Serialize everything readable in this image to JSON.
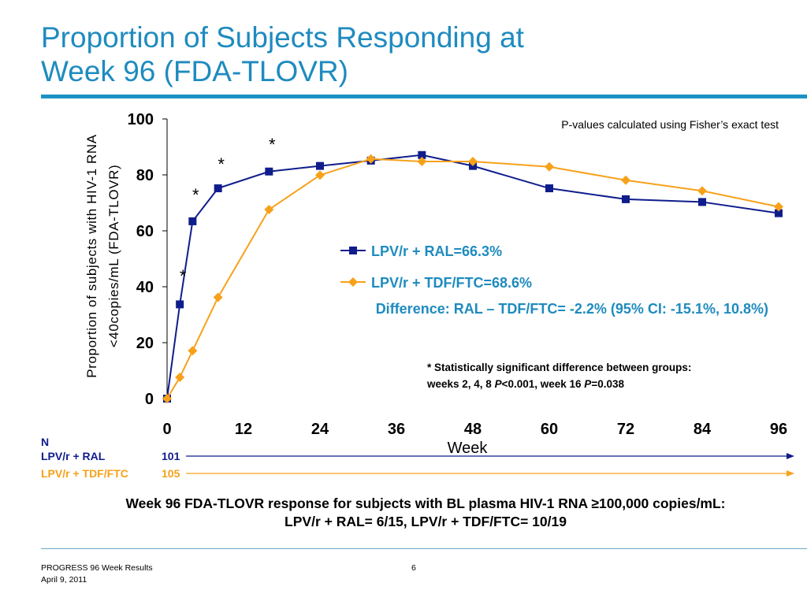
{
  "slide": {
    "title_line1": "Proportion of Subjects Responding at",
    "title_line2": "Week 96 (FDA-TLOVR)",
    "bottom_note_line1": "Week 96 FDA-TLOVR response for subjects with BL plasma HIV-1 RNA  ≥100,000 copies/mL:",
    "bottom_note_line2": "LPV/r + RAL= 6/15, LPV/r + TDF/FTC= 10/19",
    "footer_title": "PROGRESS 96 Week Results",
    "footer_date": "April 9, 2011",
    "page_number": "6"
  },
  "colors": {
    "title": "#1e8bbf",
    "series_ral": "#0f1d8c",
    "series_tdf": "#f7a11a",
    "difference_text": "#1e8bbf"
  },
  "chart_data": {
    "type": "line",
    "xlabel": "Week",
    "ylabel_line1": "Proportion of subjects with HIV-1 RNA",
    "ylabel_line2": "<40copies/mL (FDA-TLOVR)",
    "xlim": [
      0,
      96
    ],
    "ylim": [
      0,
      100
    ],
    "x_ticks": [
      0,
      12,
      24,
      36,
      48,
      60,
      72,
      84,
      96
    ],
    "y_ticks": [
      0,
      20,
      40,
      60,
      80,
      100
    ],
    "grid": false,
    "series": [
      {
        "name": "LPV/r + RAL=66.3%",
        "color": "#0f1d8c",
        "marker": "square",
        "x": [
          0,
          2,
          4,
          8,
          16,
          24,
          32,
          40,
          48,
          60,
          72,
          84,
          96
        ],
        "y": [
          0,
          33.7,
          63.4,
          75.2,
          81.2,
          83.2,
          85.1,
          87.1,
          83.2,
          75.2,
          71.3,
          70.3,
          66.3
        ]
      },
      {
        "name": "LPV/r + TDF/FTC=68.6%",
        "color": "#f7a11a",
        "marker": "diamond",
        "x": [
          0,
          2,
          4,
          8,
          16,
          24,
          32,
          40,
          48,
          60,
          72,
          84,
          96
        ],
        "y": [
          0,
          7.6,
          17.1,
          36.2,
          67.6,
          79.9,
          85.7,
          84.8,
          84.8,
          82.9,
          78.1,
          74.3,
          68.6
        ]
      }
    ],
    "significance_markers": [
      {
        "x": 2,
        "y": 44,
        "label": "*"
      },
      {
        "x": 4,
        "y": 73,
        "label": "*"
      },
      {
        "x": 8,
        "y": 84,
        "label": "*"
      },
      {
        "x": 16,
        "y": 91,
        "label": "*"
      }
    ],
    "annotations": {
      "pvalue_note": "P-values calculated using Fisher’s exact test",
      "difference": "Difference: RAL – TDF/FTC= -2.2% (95% CI: -15.1%, 10.8%)",
      "sig_note_line1": "* Statistically significant difference between groups:",
      "sig_note_line2_a": "weeks 2, 4, 8 ",
      "sig_note_line2_p1": "P",
      "sig_note_line2_b": "<0.001, week 16 ",
      "sig_note_line2_p2": "P",
      "sig_note_line2_c": "=0.038"
    },
    "n_table": {
      "header": "N",
      "rows": [
        {
          "label": "LPV/r + RAL",
          "value": "101",
          "color": "#0f1d8c"
        },
        {
          "label": "LPV/r + TDF/FTC",
          "value": "105",
          "color": "#f7a11a"
        }
      ]
    }
  }
}
